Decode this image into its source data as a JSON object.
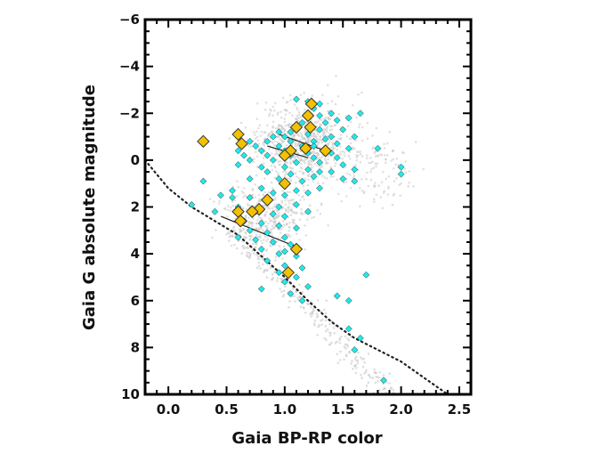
{
  "chart_data": {
    "type": "scatter",
    "title": "",
    "xlabel": "Gaia BP-RP color",
    "ylabel": "Gaia G absolute magnitude",
    "xlim": [
      -0.2,
      2.6
    ],
    "ylim": [
      10,
      -6
    ],
    "y_inverted": true,
    "grid": false,
    "legend": "none",
    "x_ticks": [
      0.0,
      0.5,
      1.0,
      1.5,
      2.0,
      2.5
    ],
    "x_tick_labels": [
      "0.0",
      "0.5",
      "1.0",
      "1.5",
      "2.0",
      "2.5"
    ],
    "y_ticks": [
      -6,
      -4,
      -2,
      0,
      2,
      4,
      6,
      8,
      10
    ],
    "y_tick_labels": [
      "−6",
      "−4",
      "−2",
      "0",
      "2",
      "4",
      "6",
      "8",
      "10"
    ],
    "colors": {
      "background_stars": "#c8c8c8",
      "cyan_points": "#22e8e8",
      "gold_points": "#f2c200",
      "marker_edge": "#333333",
      "main_sequence_line": "#222222"
    },
    "series": [
      {
        "marker": "diamond-small",
        "color": "#22e8e8",
        "points": [
          [
            1.1,
            -2.6
          ],
          [
            1.2,
            -2.5
          ],
          [
            1.3,
            -2.4
          ],
          [
            1.25,
            -2.2
          ],
          [
            1.4,
            -2.0
          ],
          [
            1.45,
            -1.7
          ],
          [
            1.55,
            -1.8
          ],
          [
            1.65,
            -2.0
          ],
          [
            1.3,
            -1.9
          ],
          [
            1.15,
            -1.6
          ],
          [
            1.35,
            -1.6
          ],
          [
            1.1,
            -1.4
          ],
          [
            0.95,
            -1.2
          ],
          [
            1.05,
            -1.2
          ],
          [
            1.3,
            -1.3
          ],
          [
            1.5,
            -1.3
          ],
          [
            0.9,
            -1.0
          ],
          [
            1.0,
            -1.0
          ],
          [
            1.2,
            -1.1
          ],
          [
            1.4,
            -1.0
          ],
          [
            1.6,
            -1.0
          ],
          [
            0.7,
            -0.8
          ],
          [
            0.85,
            -0.8
          ],
          [
            1.05,
            -0.8
          ],
          [
            1.25,
            -0.8
          ],
          [
            1.45,
            -0.7
          ],
          [
            0.75,
            -0.6
          ],
          [
            0.95,
            -0.6
          ],
          [
            1.15,
            -0.6
          ],
          [
            1.35,
            -0.5
          ],
          [
            1.55,
            -0.5
          ],
          [
            0.6,
            -0.4
          ],
          [
            0.8,
            -0.4
          ],
          [
            1.0,
            -0.4
          ],
          [
            1.2,
            -0.3
          ],
          [
            1.4,
            -0.3
          ],
          [
            0.65,
            -0.2
          ],
          [
            0.85,
            -0.2
          ],
          [
            1.05,
            -0.2
          ],
          [
            1.25,
            -0.1
          ],
          [
            1.45,
            -0.1
          ],
          [
            1.8,
            -0.5
          ],
          [
            0.7,
            0.0
          ],
          [
            0.9,
            0.0
          ],
          [
            1.1,
            0.1
          ],
          [
            1.3,
            0.1
          ],
          [
            1.5,
            0.2
          ],
          [
            2.0,
            0.3
          ],
          [
            0.6,
            0.2
          ],
          [
            0.8,
            0.3
          ],
          [
            1.0,
            0.3
          ],
          [
            1.2,
            0.4
          ],
          [
            1.4,
            0.5
          ],
          [
            1.6,
            0.4
          ],
          [
            0.85,
            0.5
          ],
          [
            1.05,
            0.6
          ],
          [
            1.25,
            0.7
          ],
          [
            0.95,
            0.8
          ],
          [
            1.15,
            0.9
          ],
          [
            1.5,
            0.8
          ],
          [
            1.6,
            0.9
          ],
          [
            0.3,
            0.9
          ],
          [
            0.7,
            0.8
          ],
          [
            1.0,
            1.1
          ],
          [
            1.1,
            1.3
          ],
          [
            0.8,
            1.2
          ],
          [
            0.9,
            1.4
          ],
          [
            0.45,
            1.5
          ],
          [
            0.55,
            1.6
          ],
          [
            0.7,
            1.6
          ],
          [
            1.0,
            1.5
          ],
          [
            1.2,
            1.4
          ],
          [
            0.85,
            1.8
          ],
          [
            0.95,
            2.0
          ],
          [
            1.1,
            1.9
          ],
          [
            0.6,
            2.0
          ],
          [
            0.75,
            2.2
          ],
          [
            0.9,
            2.3
          ],
          [
            1.0,
            2.4
          ],
          [
            0.2,
            1.9
          ],
          [
            0.4,
            2.2
          ],
          [
            0.65,
            2.6
          ],
          [
            0.8,
            2.7
          ],
          [
            0.95,
            2.8
          ],
          [
            1.1,
            2.9
          ],
          [
            0.7,
            3.0
          ],
          [
            0.85,
            3.1
          ],
          [
            1.0,
            3.3
          ],
          [
            0.75,
            3.4
          ],
          [
            0.9,
            3.5
          ],
          [
            1.05,
            3.6
          ],
          [
            0.8,
            3.8
          ],
          [
            0.95,
            4.0
          ],
          [
            1.1,
            4.1
          ],
          [
            0.85,
            4.3
          ],
          [
            1.0,
            4.5
          ],
          [
            1.15,
            4.6
          ],
          [
            0.95,
            4.8
          ],
          [
            1.1,
            5.0
          ],
          [
            1.0,
            5.2
          ],
          [
            1.2,
            5.4
          ],
          [
            1.05,
            5.7
          ],
          [
            1.15,
            6.0
          ],
          [
            1.7,
            4.9
          ],
          [
            1.45,
            5.8
          ],
          [
            1.55,
            6.0
          ],
          [
            1.55,
            7.2
          ],
          [
            1.65,
            7.6
          ],
          [
            1.6,
            8.1
          ],
          [
            1.85,
            9.4
          ],
          [
            2.0,
            0.6
          ],
          [
            1.3,
            1.2
          ],
          [
            1.2,
            2.2
          ],
          [
            0.55,
            1.3
          ],
          [
            1.0,
            3.9
          ],
          [
            0.6,
            3.3
          ],
          [
            0.8,
            5.5
          ],
          [
            1.3,
            0.5
          ],
          [
            1.25,
            -0.6
          ],
          [
            1.35,
            -0.9
          ]
        ]
      },
      {
        "marker": "diamond-large",
        "color": "#f2c200",
        "points": [
          [
            1.23,
            -2.4
          ],
          [
            1.2,
            -1.9
          ],
          [
            1.1,
            -1.4
          ],
          [
            1.22,
            -1.4
          ],
          [
            0.3,
            -0.8
          ],
          [
            0.6,
            -1.1
          ],
          [
            0.63,
            -0.7
          ],
          [
            1.18,
            -0.5
          ],
          [
            1.05,
            -0.4
          ],
          [
            1.35,
            -0.4
          ],
          [
            1.0,
            -0.2
          ],
          [
            1.0,
            1.0
          ],
          [
            0.85,
            1.7
          ],
          [
            0.78,
            2.1
          ],
          [
            0.72,
            2.2
          ],
          [
            0.6,
            2.2
          ],
          [
            0.62,
            2.6
          ],
          [
            1.1,
            3.8
          ],
          [
            1.03,
            4.8
          ]
        ]
      }
    ],
    "lines": [
      {
        "name_visible": false,
        "style": "dotted",
        "x": [
          -0.2,
          0.0,
          0.2,
          0.4,
          0.6,
          0.8,
          1.0,
          1.2,
          1.4,
          1.6,
          1.8,
          2.0,
          2.2,
          2.4
        ],
        "y": [
          0.0,
          1.2,
          2.0,
          2.6,
          3.2,
          4.1,
          5.0,
          6.0,
          6.9,
          7.6,
          8.1,
          8.6,
          9.3,
          10.0
        ]
      },
      {
        "style": "solid",
        "x": [
          0.45,
          1.1
        ],
        "y": [
          2.4,
          3.7
        ]
      },
      {
        "style": "solid",
        "x": [
          0.95,
          1.35
        ],
        "y": [
          -1.1,
          -0.4
        ]
      },
      {
        "style": "solid",
        "x": [
          0.85,
          1.2
        ],
        "y": [
          -0.6,
          -0.1
        ]
      }
    ]
  }
}
